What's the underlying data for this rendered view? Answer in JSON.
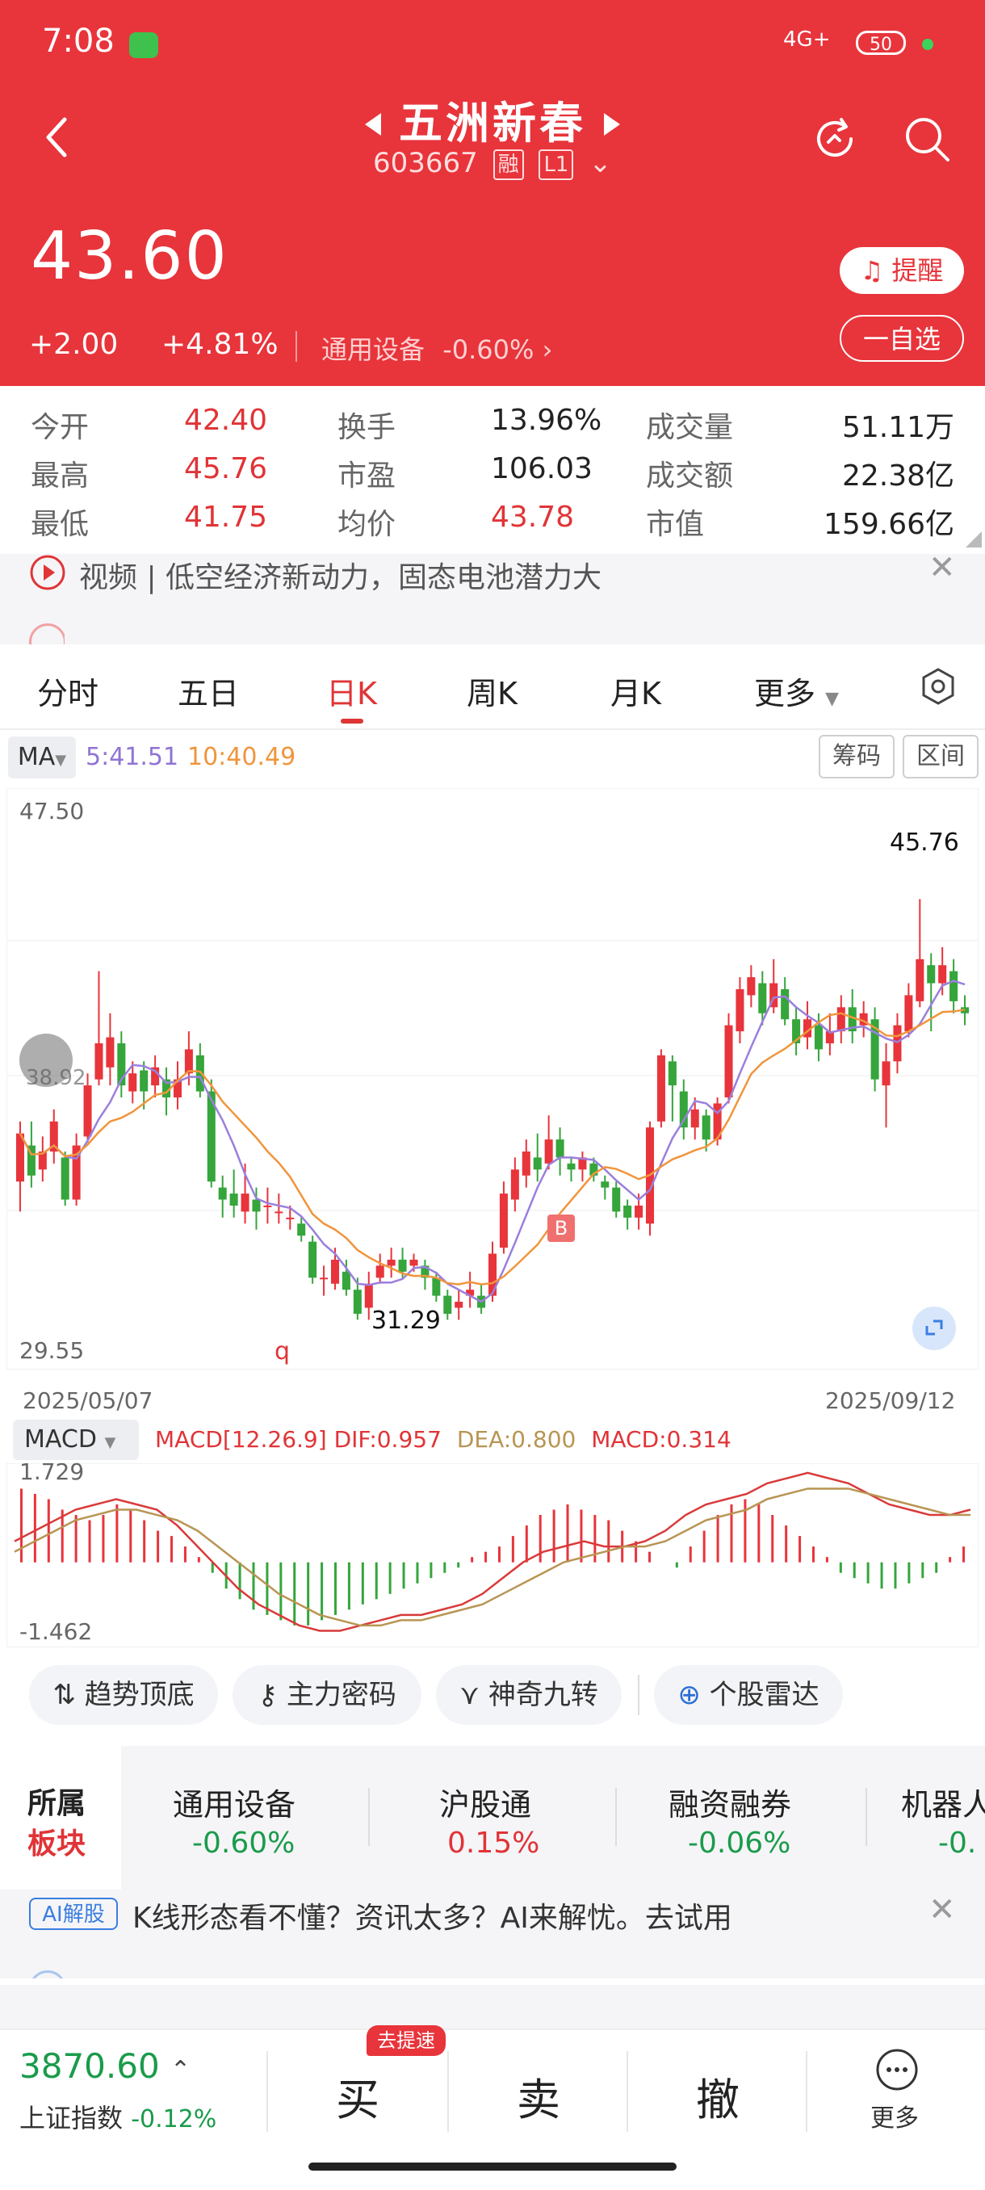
{
  "status_bar": {
    "time": "7:08",
    "signal": "4G+",
    "battery": "50"
  },
  "stock": {
    "name": "五洲新春",
    "code": "603667",
    "tag_margin": "融",
    "tag_level": "L1",
    "price": "43.60",
    "change": "+2.00",
    "change_pct": "+4.81%",
    "sector_link": "通用设备",
    "sector_change": "-0.60%"
  },
  "header_buttons": {
    "remind": "提醒",
    "favorite": "一自选"
  },
  "stats": [
    {
      "label": "今开",
      "value": "42.40",
      "color": "#e03437"
    },
    {
      "label": "换手",
      "value": "13.96%",
      "color": "#222222"
    },
    {
      "label": "成交量",
      "value": "51.11万",
      "color": "#222222"
    },
    {
      "label": "最高",
      "value": "45.76",
      "color": "#e03437"
    },
    {
      "label": "市盈",
      "value": "106.03",
      "color": "#222222"
    },
    {
      "label": "成交额",
      "value": "22.38亿",
      "color": "#222222"
    },
    {
      "label": "最低",
      "value": "41.75",
      "color": "#e03437"
    },
    {
      "label": "均价",
      "value": "43.78",
      "color": "#e03437"
    },
    {
      "label": "市值",
      "value": "159.66亿",
      "color": "#222222"
    }
  ],
  "news_banner": {
    "text": "视频 | 低空经济新动力，固态电池潜力大"
  },
  "tabs": [
    "分时",
    "五日",
    "日K",
    "周K",
    "月K",
    "更多"
  ],
  "active_tab": "日K",
  "ma_bar": {
    "button": "MA",
    "ma5": "5:41.51",
    "ma10": "10:40.49",
    "chip_btn": "筹码",
    "range_btn": "区间"
  },
  "chart_data": [
    {
      "type": "candlestick",
      "title": "",
      "x_start": "2025/05/07",
      "x_end": "2025/09/12",
      "ylim": [
        29.55,
        47.5
      ],
      "y_top_label": "47.50",
      "y_bottom_label": "29.55",
      "high_marker": "45.76",
      "low_marker": "31.29",
      "buy_marker": "B",
      "overlay_text": "38.92",
      "candles": [
        {
          "o": 35.0,
          "c": 36.6,
          "h": 37.0,
          "l": 34.0
        },
        {
          "o": 36.2,
          "c": 35.2,
          "h": 37.0,
          "l": 34.8
        },
        {
          "o": 35.4,
          "c": 36.0,
          "h": 36.5,
          "l": 35.0
        },
        {
          "o": 36.0,
          "c": 37.0,
          "h": 37.4,
          "l": 35.6
        },
        {
          "o": 35.8,
          "c": 34.4,
          "h": 36.0,
          "l": 34.2
        },
        {
          "o": 34.4,
          "c": 36.2,
          "h": 36.6,
          "l": 34.2
        },
        {
          "o": 36.5,
          "c": 38.2,
          "h": 38.6,
          "l": 36.3
        },
        {
          "o": 38.4,
          "c": 39.6,
          "h": 42.0,
          "l": 38.2
        },
        {
          "o": 38.8,
          "c": 39.8,
          "h": 40.6,
          "l": 38.2
        },
        {
          "o": 39.6,
          "c": 38.2,
          "h": 40.0,
          "l": 37.8
        },
        {
          "o": 38.0,
          "c": 38.6,
          "h": 39.0,
          "l": 37.6
        },
        {
          "o": 38.7,
          "c": 38.0,
          "h": 39.0,
          "l": 37.4
        },
        {
          "o": 38.2,
          "c": 38.8,
          "h": 39.2,
          "l": 37.8
        },
        {
          "o": 38.4,
          "c": 37.8,
          "h": 38.8,
          "l": 37.2
        },
        {
          "o": 37.8,
          "c": 38.4,
          "h": 39.0,
          "l": 37.4
        },
        {
          "o": 38.6,
          "c": 39.4,
          "h": 40.0,
          "l": 38.2
        },
        {
          "o": 39.2,
          "c": 38.0,
          "h": 39.6,
          "l": 37.8
        },
        {
          "o": 38.0,
          "c": 35.0,
          "h": 38.4,
          "l": 34.8
        },
        {
          "o": 34.8,
          "c": 34.4,
          "h": 35.2,
          "l": 33.8
        },
        {
          "o": 34.6,
          "c": 34.2,
          "h": 35.4,
          "l": 33.8
        },
        {
          "o": 34.0,
          "c": 34.6,
          "h": 35.6,
          "l": 33.6
        },
        {
          "o": 34.4,
          "c": 34.0,
          "h": 34.8,
          "l": 33.4
        },
        {
          "o": 34.2,
          "c": 34.2,
          "h": 34.8,
          "l": 33.6
        },
        {
          "o": 34.0,
          "c": 34.0,
          "h": 34.6,
          "l": 33.6
        },
        {
          "o": 33.8,
          "c": 33.8,
          "h": 34.2,
          "l": 33.4
        },
        {
          "o": 33.6,
          "c": 33.2,
          "h": 33.8,
          "l": 33.0
        },
        {
          "o": 33.0,
          "c": 31.8,
          "h": 33.2,
          "l": 31.6
        },
        {
          "o": 31.8,
          "c": 31.8,
          "h": 32.2,
          "l": 31.2
        },
        {
          "o": 31.6,
          "c": 32.4,
          "h": 32.8,
          "l": 31.4
        },
        {
          "o": 32.0,
          "c": 31.4,
          "h": 32.4,
          "l": 31.2
        },
        {
          "o": 31.4,
          "c": 30.6,
          "h": 31.8,
          "l": 30.4
        },
        {
          "o": 30.8,
          "c": 31.6,
          "h": 32.0,
          "l": 30.4
        },
        {
          "o": 31.8,
          "c": 32.2,
          "h": 32.6,
          "l": 31.6
        },
        {
          "o": 32.2,
          "c": 32.4,
          "h": 32.8,
          "l": 31.8
        },
        {
          "o": 32.4,
          "c": 32.0,
          "h": 32.8,
          "l": 31.8
        },
        {
          "o": 32.2,
          "c": 32.4,
          "h": 32.6,
          "l": 32.0
        },
        {
          "o": 32.2,
          "c": 31.8,
          "h": 32.4,
          "l": 31.4
        },
        {
          "o": 31.8,
          "c": 31.2,
          "h": 32.0,
          "l": 31.0
        },
        {
          "o": 31.2,
          "c": 30.6,
          "h": 31.4,
          "l": 30.4
        },
        {
          "o": 30.8,
          "c": 31.0,
          "h": 31.4,
          "l": 30.4
        },
        {
          "o": 31.2,
          "c": 31.4,
          "h": 32.0,
          "l": 30.8
        },
        {
          "o": 31.2,
          "c": 30.8,
          "h": 31.6,
          "l": 30.6
        },
        {
          "o": 31.2,
          "c": 32.6,
          "h": 33.0,
          "l": 31.0
        },
        {
          "o": 32.8,
          "c": 34.6,
          "h": 35.0,
          "l": 32.6
        },
        {
          "o": 34.4,
          "c": 35.4,
          "h": 35.8,
          "l": 34.0
        },
        {
          "o": 35.2,
          "c": 36.0,
          "h": 36.4,
          "l": 34.8
        },
        {
          "o": 35.8,
          "c": 35.4,
          "h": 36.6,
          "l": 35.0
        },
        {
          "o": 35.6,
          "c": 36.4,
          "h": 37.2,
          "l": 35.4
        },
        {
          "o": 36.4,
          "c": 35.8,
          "h": 36.8,
          "l": 35.2
        },
        {
          "o": 35.6,
          "c": 35.4,
          "h": 35.8,
          "l": 35.0
        },
        {
          "o": 35.4,
          "c": 35.8,
          "h": 36.0,
          "l": 35.0
        },
        {
          "o": 35.6,
          "c": 35.2,
          "h": 35.8,
          "l": 35.0
        },
        {
          "o": 35.0,
          "c": 34.8,
          "h": 35.2,
          "l": 34.4
        },
        {
          "o": 34.8,
          "c": 34.0,
          "h": 35.0,
          "l": 33.8
        },
        {
          "o": 34.2,
          "c": 33.8,
          "h": 34.4,
          "l": 33.4
        },
        {
          "o": 33.8,
          "c": 34.2,
          "h": 34.6,
          "l": 33.4
        },
        {
          "o": 33.6,
          "c": 36.8,
          "h": 37.0,
          "l": 33.2
        },
        {
          "o": 37.0,
          "c": 39.2,
          "h": 39.4,
          "l": 36.8
        },
        {
          "o": 39.0,
          "c": 38.2,
          "h": 39.2,
          "l": 37.0
        },
        {
          "o": 38.0,
          "c": 36.8,
          "h": 38.4,
          "l": 36.4
        },
        {
          "o": 36.8,
          "c": 37.4,
          "h": 37.8,
          "l": 36.4
        },
        {
          "o": 37.2,
          "c": 36.4,
          "h": 37.4,
          "l": 36.0
        },
        {
          "o": 36.4,
          "c": 37.6,
          "h": 37.8,
          "l": 36.2
        },
        {
          "o": 37.8,
          "c": 40.2,
          "h": 40.6,
          "l": 37.6
        },
        {
          "o": 40.0,
          "c": 41.4,
          "h": 41.8,
          "l": 39.6
        },
        {
          "o": 41.2,
          "c": 41.8,
          "h": 42.2,
          "l": 40.8
        },
        {
          "o": 41.6,
          "c": 40.6,
          "h": 42.0,
          "l": 40.2
        },
        {
          "o": 40.8,
          "c": 41.6,
          "h": 42.4,
          "l": 40.6
        },
        {
          "o": 41.4,
          "c": 40.4,
          "h": 41.8,
          "l": 40.2
        },
        {
          "o": 40.4,
          "c": 39.6,
          "h": 40.8,
          "l": 39.2
        },
        {
          "o": 39.8,
          "c": 40.4,
          "h": 41.0,
          "l": 39.4
        },
        {
          "o": 40.2,
          "c": 39.4,
          "h": 40.6,
          "l": 39.0
        },
        {
          "o": 39.6,
          "c": 40.0,
          "h": 40.6,
          "l": 39.2
        },
        {
          "o": 40.0,
          "c": 40.8,
          "h": 41.2,
          "l": 39.6
        },
        {
          "o": 40.8,
          "c": 40.0,
          "h": 41.4,
          "l": 39.6
        },
        {
          "o": 40.2,
          "c": 40.6,
          "h": 41.0,
          "l": 39.8
        },
        {
          "o": 40.4,
          "c": 38.4,
          "h": 40.8,
          "l": 38.0
        },
        {
          "o": 38.2,
          "c": 39.0,
          "h": 39.6,
          "l": 36.8
        },
        {
          "o": 39.0,
          "c": 40.2,
          "h": 40.6,
          "l": 38.6
        },
        {
          "o": 40.0,
          "c": 41.2,
          "h": 41.6,
          "l": 39.8
        },
        {
          "o": 41.0,
          "c": 42.4,
          "h": 44.4,
          "l": 40.8
        },
        {
          "o": 42.2,
          "c": 41.6,
          "h": 42.6,
          "l": 40.0
        },
        {
          "o": 41.6,
          "c": 42.2,
          "h": 42.8,
          "l": 41.2
        },
        {
          "o": 42.0,
          "c": 41.0,
          "h": 42.4,
          "l": 40.6
        },
        {
          "o": 40.8,
          "c": 40.6,
          "h": 41.2,
          "l": 40.2
        }
      ]
    },
    {
      "type": "bar",
      "title": "",
      "indicator_label": "MACD",
      "params_text": "MACD[12.26.9]",
      "dif_text": "DIF:0.957",
      "dea_text": "DEA:0.800",
      "macd_text": "MACD:0.314",
      "ylim": [
        -1.462,
        1.729
      ],
      "y_top_label": "1.729",
      "y_bottom_label": "-1.462",
      "values": [
        1.4,
        1.3,
        1.2,
        1.0,
        0.9,
        0.8,
        0.9,
        1.1,
        1.0,
        0.8,
        0.6,
        0.5,
        0.3,
        0.1,
        -0.2,
        -0.5,
        -0.7,
        -0.9,
        -1.0,
        -1.1,
        -1.2,
        -1.2,
        -1.1,
        -1.0,
        -0.9,
        -0.8,
        -0.7,
        -0.6,
        -0.5,
        -0.4,
        -0.3,
        -0.2,
        -0.1,
        0.1,
        0.2,
        0.3,
        0.5,
        0.7,
        0.9,
        1.0,
        1.1,
        1.0,
        0.9,
        0.8,
        0.6,
        0.4,
        0.2,
        0.0,
        -0.1,
        0.3,
        0.6,
        0.9,
        1.1,
        1.2,
        1.1,
        0.9,
        0.7,
        0.5,
        0.3,
        0.1,
        -0.2,
        -0.3,
        -0.4,
        -0.5,
        -0.5,
        -0.4,
        -0.3,
        -0.2,
        0.1,
        0.3
      ],
      "dif": [
        0.4,
        0.6,
        0.8,
        1.0,
        1.1,
        1.2,
        1.1,
        1.0,
        0.7,
        0.3,
        -0.1,
        -0.5,
        -0.8,
        -1.0,
        -1.2,
        -1.3,
        -1.3,
        -1.2,
        -1.1,
        -1.0,
        -1.0,
        -0.9,
        -0.8,
        -0.6,
        -0.3,
        0.0,
        0.2,
        0.3,
        0.4,
        0.3,
        0.3,
        0.4,
        0.6,
        0.9,
        1.1,
        1.2,
        1.3,
        1.5,
        1.6,
        1.7,
        1.6,
        1.5,
        1.3,
        1.1,
        1.0,
        0.9,
        0.9,
        1.0
      ],
      "dea": [
        0.2,
        0.4,
        0.6,
        0.8,
        0.9,
        1.0,
        1.0,
        0.9,
        0.8,
        0.6,
        0.3,
        0.0,
        -0.3,
        -0.6,
        -0.8,
        -1.0,
        -1.1,
        -1.2,
        -1.2,
        -1.1,
        -1.1,
        -1.0,
        -0.9,
        -0.8,
        -0.6,
        -0.4,
        -0.2,
        0.0,
        0.1,
        0.2,
        0.3,
        0.3,
        0.4,
        0.6,
        0.8,
        0.9,
        1.0,
        1.2,
        1.3,
        1.4,
        1.4,
        1.4,
        1.3,
        1.2,
        1.1,
        1.0,
        0.9,
        0.9
      ]
    }
  ],
  "feature_buttons": [
    "趋势顶底",
    "主力密码",
    "神奇九转",
    "个股雷达"
  ],
  "sector_panel": {
    "label_line1": "所属",
    "label_line2": "板块",
    "items": [
      {
        "name": "通用设备",
        "value": "-0.60%",
        "color": "#1a9b4b"
      },
      {
        "name": "沪股通",
        "value": "0.15%",
        "color": "#e03437"
      },
      {
        "name": "融资融券",
        "value": "-0.06%",
        "color": "#1a9b4b"
      },
      {
        "name": "机器人",
        "value": "-0.",
        "color": "#1a9b4b"
      }
    ]
  },
  "ai_banner": {
    "badge": "AI解股",
    "text": "K线形态看不懂？资讯太多？AI来解忧。去试用"
  },
  "bottom": {
    "index_value": "3870.60",
    "index_name": "上证指数",
    "index_change": "-0.12%",
    "badge": "去提速",
    "buy": "买",
    "sell": "卖",
    "cancel": "撤",
    "more": "更多"
  }
}
